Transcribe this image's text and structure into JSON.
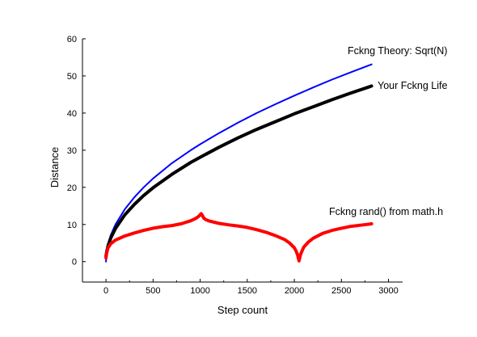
{
  "chart_data": {
    "type": "line",
    "title": "",
    "xlabel": "Step count",
    "ylabel": "Distance",
    "xlim": [
      -250,
      3150
    ],
    "ylim": [
      -5.5,
      60
    ],
    "xticks": [
      0,
      500,
      1000,
      1500,
      2000,
      2500,
      3000
    ],
    "yticks": [
      0,
      10,
      20,
      30,
      40,
      50,
      60
    ],
    "grid": false,
    "legend": "none",
    "series": [
      {
        "name": "Fckng Theory: Sqrt(N)",
        "color": "#0000ff",
        "x": [
          0,
          10,
          25,
          50,
          100,
          200,
          300,
          400,
          500,
          700,
          900,
          1000,
          1200,
          1400,
          1600,
          1800,
          2000,
          2200,
          2400,
          2600,
          2800,
          2820
        ],
        "y": [
          0,
          3.2,
          5.0,
          7.1,
          10.0,
          14.1,
          17.3,
          20.0,
          22.4,
          26.5,
          30.0,
          31.6,
          34.6,
          37.4,
          40.0,
          42.4,
          44.7,
          46.9,
          49.0,
          51.0,
          52.9,
          53.1
        ]
      },
      {
        "name": "Your Fckng Life",
        "color": "#000000",
        "x": [
          0,
          10,
          25,
          50,
          100,
          200,
          300,
          400,
          500,
          700,
          900,
          1000,
          1200,
          1400,
          1600,
          1800,
          2000,
          2200,
          2400,
          2600,
          2800,
          2820
        ],
        "y": [
          1.5,
          3.0,
          4.5,
          6.3,
          8.9,
          12.6,
          15.4,
          17.8,
          19.9,
          23.5,
          26.7,
          28.1,
          30.8,
          33.3,
          35.6,
          37.7,
          39.8,
          41.7,
          43.6,
          45.4,
          47.1,
          47.3
        ]
      },
      {
        "name": "Fckng rand() from math.h",
        "color": "#ff0000",
        "x": [
          0,
          5,
          20,
          50,
          100,
          200,
          300,
          400,
          500,
          600,
          700,
          800,
          850,
          900,
          950,
          980,
          1000,
          1010,
          1020,
          1030,
          1040,
          1060,
          1100,
          1150,
          1200,
          1300,
          1400,
          1500,
          1600,
          1700,
          1800,
          1900,
          1950,
          2000,
          2020,
          2035,
          2045,
          2050,
          2055,
          2065,
          2080,
          2100,
          2150,
          2200,
          2300,
          2400,
          2500,
          2600,
          2700,
          2800,
          2820
        ],
        "y": [
          1.0,
          2.0,
          3.6,
          4.8,
          5.8,
          6.9,
          7.7,
          8.4,
          9.0,
          9.4,
          9.7,
          10.2,
          10.6,
          11.0,
          11.6,
          12.1,
          12.6,
          12.9,
          12.6,
          12.1,
          11.7,
          11.3,
          10.9,
          10.6,
          10.3,
          9.9,
          9.6,
          9.2,
          8.6,
          7.9,
          7.0,
          5.9,
          5.0,
          3.7,
          2.8,
          1.8,
          0.7,
          0.2,
          0.8,
          1.8,
          2.8,
          3.9,
          5.3,
          6.3,
          7.6,
          8.4,
          9.0,
          9.5,
          9.8,
          10.1,
          10.2
        ]
      }
    ],
    "annotations": [
      {
        "text": "Fckng Theory: Sqrt(N)",
        "series": 0
      },
      {
        "text": "Your Fckng Life",
        "series": 1
      },
      {
        "text": "Fckng rand() from math.h",
        "series": 2
      }
    ]
  }
}
